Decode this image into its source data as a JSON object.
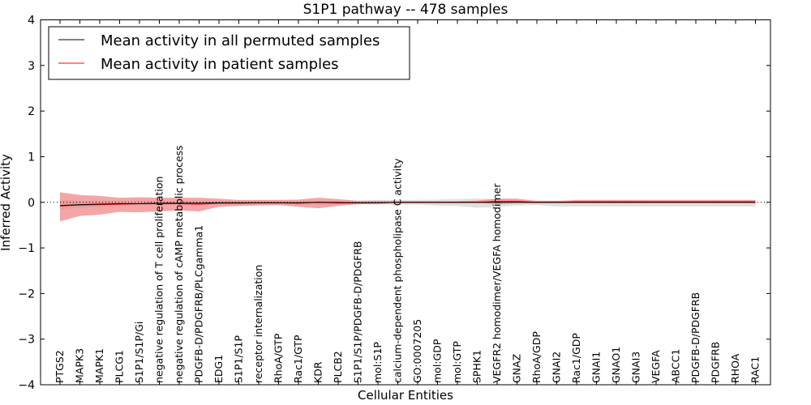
{
  "chart_data": {
    "type": "line",
    "title": "S1P1 pathway -- 478 samples",
    "xlabel": "Cellular Entities",
    "ylabel": "Inferred Activity",
    "ylim": [
      -4,
      4
    ],
    "yticks": [
      "4",
      "3",
      "2",
      "1",
      "0",
      "−1",
      "−2",
      "−3",
      "−4"
    ],
    "categories": [
      "PTGS2",
      "MAPK3",
      "MAPK1",
      "PLCG1",
      "S1P1/S1P/Gi",
      "negative regulation of T cell proliferation",
      "negative regulation of cAMP metabolic process",
      "PDGFB-D/PDGFRB/PLCgamma1",
      "EDG1",
      "S1P1/S1P",
      "receptor internalization",
      "RhoA/GTP",
      "Rac1/GTP",
      "KDR",
      "PLCB2",
      "S1P1/S1P/PDGFB-D/PDGFRB",
      "mol:S1P",
      "calcium-dependent phospholipase C activity",
      "GO:0007205",
      "mol:GDP",
      "mol:GTP",
      "SPHK1",
      "VEGFR2 homodimer/VEGFA homodimer",
      "GNAZ",
      "RhoA/GDP",
      "GNAI2",
      "Rac1/GDP",
      "GNAI1",
      "GNAO1",
      "GNAI3",
      "VEGFA",
      "ABCC1",
      "PDGFB-D/PDGFRB",
      "PDGFRB",
      "RHOA",
      "RAC1"
    ],
    "series": [
      {
        "name": "Mean activity in all permuted samples",
        "color": "#000000",
        "values": [
          -0.07,
          -0.05,
          -0.04,
          -0.03,
          -0.03,
          -0.02,
          -0.02,
          -0.02,
          -0.01,
          -0.01,
          -0.01,
          -0.01,
          -0.01,
          0.0,
          -0.01,
          -0.01,
          -0.01,
          0.0,
          0.0,
          0.0,
          0.0,
          0.0,
          0.0,
          0.0,
          0.0,
          0.0,
          0.0,
          0.0,
          0.0,
          0.0,
          0.0,
          0.0,
          0.0,
          0.0,
          0.0,
          0.0
        ],
        "band_lower": [
          -0.15,
          -0.12,
          -0.1,
          -0.08,
          -0.07,
          -0.06,
          -0.06,
          -0.06,
          -0.06,
          -0.06,
          -0.06,
          -0.06,
          -0.06,
          -0.06,
          -0.06,
          -0.05,
          -0.05,
          -0.05,
          -0.05,
          -0.07,
          -0.08,
          -0.12,
          -0.1,
          -0.07,
          -0.06,
          -0.09,
          -0.09,
          -0.09,
          -0.09,
          -0.09,
          -0.09,
          -0.09,
          -0.09,
          -0.09,
          -0.09,
          -0.09
        ],
        "band_upper": [
          0.05,
          0.04,
          0.04,
          0.04,
          0.04,
          0.04,
          0.04,
          0.04,
          0.04,
          0.04,
          0.04,
          0.04,
          0.04,
          0.04,
          0.04,
          0.04,
          0.05,
          0.05,
          0.05,
          0.06,
          0.07,
          0.08,
          0.07,
          0.05,
          0.04,
          0.04,
          0.04,
          0.04,
          0.04,
          0.04,
          0.04,
          0.04,
          0.04,
          0.04,
          0.04,
          0.04
        ],
        "band_color": "#d9d9d9"
      },
      {
        "name": "Mean activity in patient samples",
        "color": "#ff0000",
        "values": [
          -0.08,
          -0.06,
          -0.05,
          -0.04,
          -0.03,
          -0.03,
          -0.03,
          -0.04,
          -0.02,
          -0.02,
          -0.01,
          -0.01,
          -0.02,
          0.0,
          0.0,
          -0.01,
          -0.01,
          0.0,
          0.0,
          0.0,
          0.0,
          0.0,
          0.02,
          0.02,
          0.0,
          0.0,
          0.01,
          0.01,
          0.01,
          0.01,
          0.01,
          0.01,
          0.01,
          0.01,
          0.01,
          0.01
        ],
        "band_lower": [
          -0.42,
          -0.3,
          -0.27,
          -0.21,
          -0.22,
          -0.2,
          -0.18,
          -0.2,
          -0.1,
          -0.08,
          -0.07,
          -0.06,
          -0.1,
          -0.13,
          -0.08,
          -0.04,
          -0.03,
          -0.02,
          -0.02,
          -0.02,
          -0.02,
          -0.02,
          -0.04,
          -0.02,
          -0.02,
          -0.02,
          -0.02,
          -0.02,
          -0.02,
          -0.02,
          -0.02,
          -0.02,
          -0.02,
          -0.02,
          -0.02,
          -0.02
        ],
        "band_upper": [
          0.22,
          0.16,
          0.14,
          0.1,
          0.11,
          0.1,
          0.1,
          0.1,
          0.08,
          0.05,
          0.05,
          0.05,
          0.06,
          0.1,
          0.07,
          0.03,
          0.03,
          0.02,
          0.02,
          0.02,
          0.02,
          0.04,
          0.08,
          0.08,
          0.03,
          0.03,
          0.05,
          0.05,
          0.05,
          0.05,
          0.05,
          0.05,
          0.05,
          0.05,
          0.05,
          0.05
        ],
        "band_color": "#f08080"
      }
    ],
    "reference_line": 0,
    "legend_location": "top-left",
    "grid": false
  }
}
